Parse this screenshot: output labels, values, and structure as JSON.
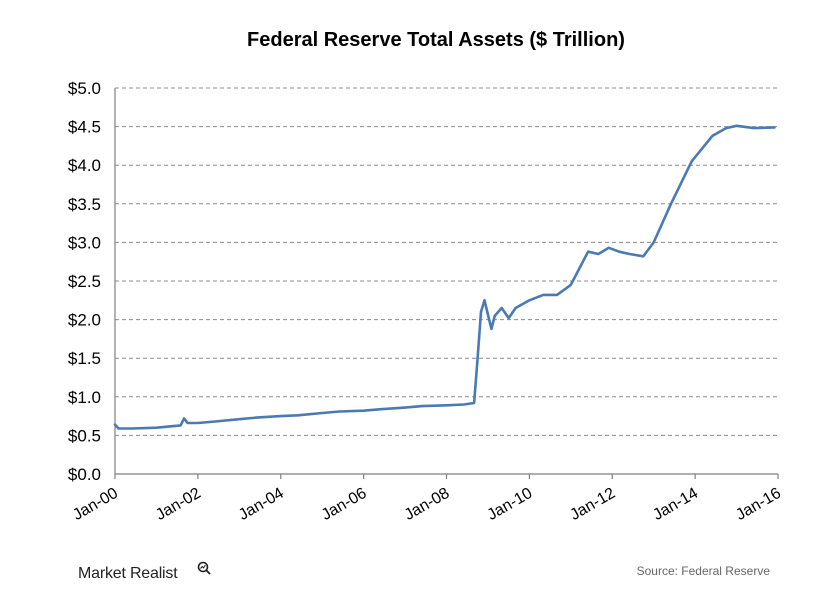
{
  "chart_data": {
    "type": "line",
    "title": "Federal Reserve Total Assets ($ Trillion)",
    "xlabel": "",
    "ylabel": "",
    "x_ticks": [
      "Jan-00",
      "Jan-02",
      "Jan-04",
      "Jan-06",
      "Jan-08",
      "Jan-10",
      "Jan-12",
      "Jan-14",
      "Jan-16"
    ],
    "x_range": [
      2000.0,
      2016.0
    ],
    "y_ticks": [
      "$0.0",
      "$0.5",
      "$1.0",
      "$1.5",
      "$2.0",
      "$2.5",
      "$3.0",
      "$3.5",
      "$4.0",
      "$4.5",
      "$5.0"
    ],
    "ylim": [
      0,
      5
    ],
    "grid": true,
    "legend": "none",
    "series": [
      {
        "color": "#4a7ab5",
        "points": [
          [
            "2000-01",
            0.64
          ],
          [
            "2000-02",
            0.59
          ],
          [
            "2000-06",
            0.59
          ],
          [
            "2001-01",
            0.6
          ],
          [
            "2001-06",
            0.62
          ],
          [
            "2001-08",
            0.63
          ],
          [
            "2001-09",
            0.72
          ],
          [
            "2001-10",
            0.66
          ],
          [
            "2002-01",
            0.66
          ],
          [
            "2002-06",
            0.68
          ],
          [
            "2003-01",
            0.71
          ],
          [
            "2003-06",
            0.73
          ],
          [
            "2004-01",
            0.75
          ],
          [
            "2004-06",
            0.76
          ],
          [
            "2005-01",
            0.79
          ],
          [
            "2005-06",
            0.81
          ],
          [
            "2006-01",
            0.82
          ],
          [
            "2006-06",
            0.84
          ],
          [
            "2007-01",
            0.86
          ],
          [
            "2007-06",
            0.88
          ],
          [
            "2008-01",
            0.89
          ],
          [
            "2008-06",
            0.9
          ],
          [
            "2008-09",
            0.92
          ],
          [
            "2008-10",
            1.5
          ],
          [
            "2008-11",
            2.1
          ],
          [
            "2008-12",
            2.25
          ],
          [
            "2009-02",
            1.88
          ],
          [
            "2009-03",
            2.05
          ],
          [
            "2009-05",
            2.15
          ],
          [
            "2009-07",
            2.02
          ],
          [
            "2009-09",
            2.15
          ],
          [
            "2010-01",
            2.25
          ],
          [
            "2010-05",
            2.32
          ],
          [
            "2010-09",
            2.32
          ],
          [
            "2011-01",
            2.45
          ],
          [
            "2011-06",
            2.88
          ],
          [
            "2011-09",
            2.85
          ],
          [
            "2011-12",
            2.93
          ],
          [
            "2012-03",
            2.88
          ],
          [
            "2012-06",
            2.85
          ],
          [
            "2012-10",
            2.82
          ],
          [
            "2013-01",
            3.0
          ],
          [
            "2013-06",
            3.5
          ],
          [
            "2013-12",
            4.05
          ],
          [
            "2014-06",
            4.38
          ],
          [
            "2014-10",
            4.48
          ],
          [
            "2015-01",
            4.51
          ],
          [
            "2015-06",
            4.48
          ],
          [
            "2015-12",
            4.49
          ]
        ]
      }
    ],
    "source": "Source: Federal Reserve"
  },
  "brand": {
    "name": "Market Realist"
  }
}
